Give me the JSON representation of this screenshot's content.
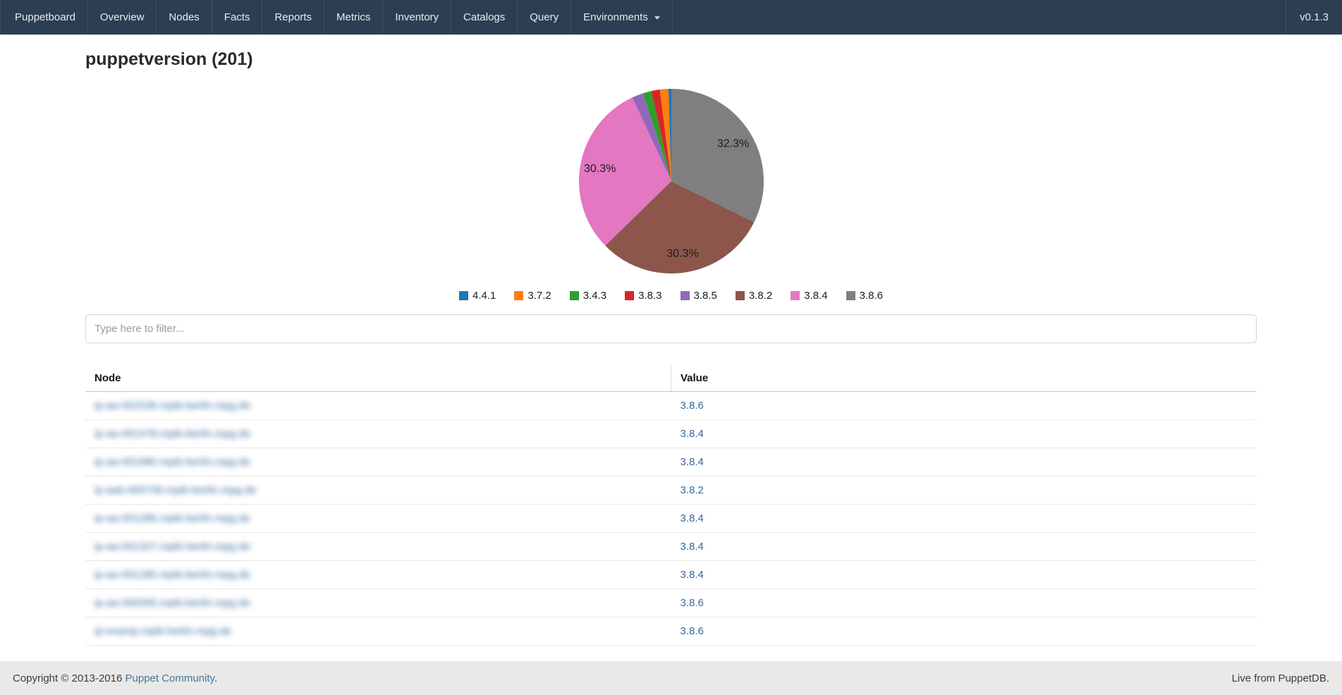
{
  "navbar": {
    "brand": "Puppetboard",
    "items": [
      "Overview",
      "Nodes",
      "Facts",
      "Reports",
      "Metrics",
      "Inventory",
      "Catalogs",
      "Query"
    ],
    "dropdown_label": "Environments",
    "version": "v0.1.3",
    "background_color": "#2d3e52"
  },
  "page": {
    "title": "puppetversion (201)"
  },
  "chart_data": {
    "type": "pie",
    "title": "puppetversion (201)",
    "total": 201,
    "legend_position": "bottom",
    "slices_clockwise_from_top": [
      {
        "label": "3.8.6",
        "value": 65,
        "pct_label": "32.3%",
        "color": "#7f7f7f"
      },
      {
        "label": "3.8.2",
        "value": 61,
        "pct_label": "30.3%",
        "color": "#8c564b"
      },
      {
        "label": "3.8.4",
        "value": 61,
        "pct_label": "30.3%",
        "color": "#e377c2"
      },
      {
        "label": "3.8.5",
        "value": 4,
        "pct_label": "",
        "color": "#9467bd"
      },
      {
        "label": "3.4.3",
        "value": 3,
        "pct_label": "",
        "color": "#2ca02c"
      },
      {
        "label": "3.8.3",
        "value": 3,
        "pct_label": "",
        "color": "#d62728"
      },
      {
        "label": "3.7.2",
        "value": 3,
        "pct_label": "",
        "color": "#ff7f0e"
      },
      {
        "label": "4.4.1",
        "value": 1,
        "pct_label": "",
        "color": "#1f77b4"
      }
    ],
    "legend": [
      {
        "label": "4.4.1",
        "color": "#1f77b4"
      },
      {
        "label": "3.7.2",
        "color": "#ff7f0e"
      },
      {
        "label": "3.4.3",
        "color": "#2ca02c"
      },
      {
        "label": "3.8.3",
        "color": "#d62728"
      },
      {
        "label": "3.8.5",
        "color": "#9467bd"
      },
      {
        "label": "3.8.2",
        "color": "#8c564b"
      },
      {
        "label": "3.8.4",
        "color": "#e377c2"
      },
      {
        "label": "3.8.6",
        "color": "#7f7f7f"
      }
    ]
  },
  "filter": {
    "placeholder": "Type here to filter..."
  },
  "table": {
    "columns": [
      "Node",
      "Value"
    ],
    "node_names_redacted": true,
    "rows": [
      {
        "node": "ip-aa-001536.mpib-berlin.mpg.de",
        "value": "3.8.6"
      },
      {
        "node": "ip-aa-001478.mpib-berlin.mpg.de",
        "value": "3.8.4"
      },
      {
        "node": "ip-aa-001980.mpib-berlin.mpg.de",
        "value": "3.8.4"
      },
      {
        "node": "ip-aab-000748.mpib-berlin.mpg.de",
        "value": "3.8.2"
      },
      {
        "node": "ip-aa-001286.mpib-berlin.mpg.de",
        "value": "3.8.4"
      },
      {
        "node": "ip-aa-001327.mpib-berlin.mpg.de",
        "value": "3.8.4"
      },
      {
        "node": "ip-aa-001285.mpib-berlin.mpg.de",
        "value": "3.8.4"
      },
      {
        "node": "ip-aa-000595.mpib-berlin.mpg.de",
        "value": "3.8.6"
      },
      {
        "node": "ip-examp.mpib-berlin.mpg.de",
        "value": "3.8.6"
      }
    ]
  },
  "footer": {
    "copyright_prefix": "Copyright © 2013-2016 ",
    "community_link": "Puppet Community",
    "copyright_suffix": ".",
    "live_text": "Live from PuppetDB."
  }
}
